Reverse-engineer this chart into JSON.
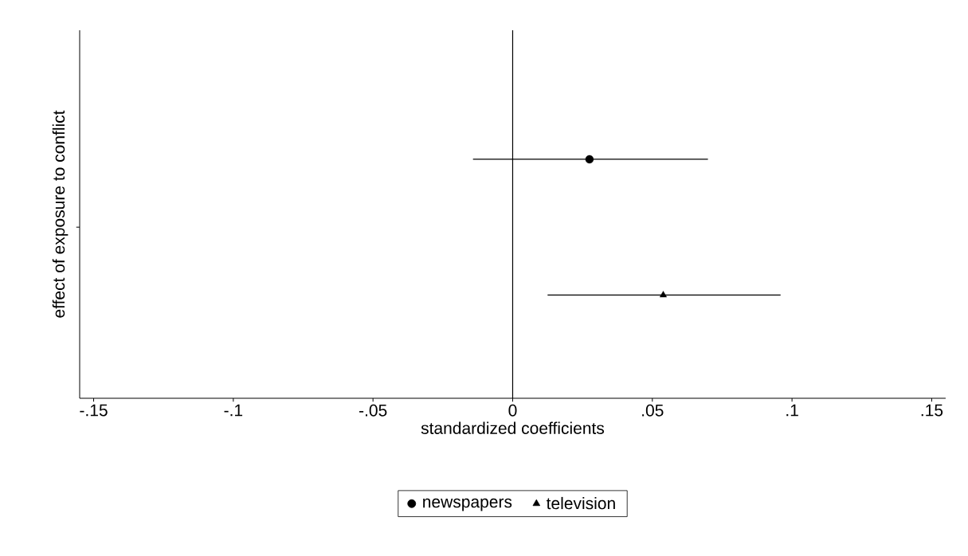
{
  "chart_data": {
    "type": "scatter",
    "orientation": "horizontal",
    "ylabel": "effect of exposure to conflict",
    "xlabel": "standardized coefficients",
    "categories": [
      null
    ],
    "series": [
      {
        "name": "newspapers",
        "color": "#000000",
        "marker": "circle",
        "values": [
          0.0275
        ],
        "errors": [
          [
            -0.0142,
            0.0699
          ]
        ]
      },
      {
        "name": "television",
        "color": "#000000",
        "marker": "triangle",
        "values": [
          0.0539
        ],
        "errors": [
          [
            0.0125,
            0.0959
          ]
        ]
      }
    ],
    "xlim": [
      -0.155,
      0.155
    ],
    "xticks": [
      {
        "value": -0.15,
        "label": "-.15"
      },
      {
        "value": -0.1,
        "label": "-.1"
      },
      {
        "value": -0.05,
        "label": "-.05"
      },
      0,
      {
        "value": 0.05,
        "label": ".05"
      },
      {
        "value": 0.1,
        "label": ".1"
      },
      {
        "value": 0.15,
        "label": ".15"
      }
    ],
    "ref_lines": [
      {
        "axis": "x",
        "value": 0,
        "color": "#000000"
      }
    ],
    "legend": "bottom"
  }
}
